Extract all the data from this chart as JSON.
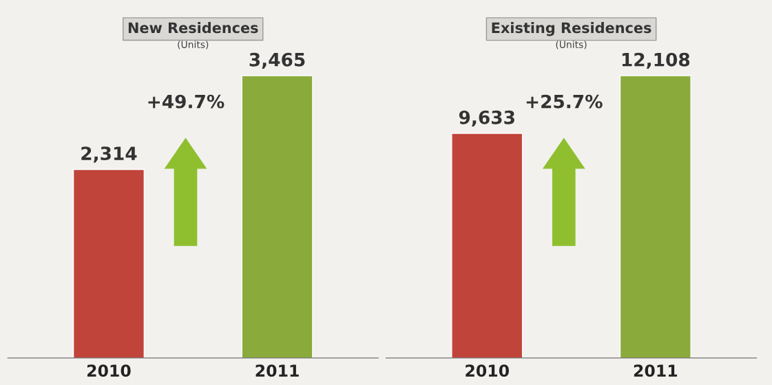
{
  "chart_data": [
    {
      "type": "bar",
      "title": "New Residences",
      "subtitle": "(Units)",
      "categories": [
        "2010",
        "2011"
      ],
      "values": [
        2314,
        3465
      ],
      "value_labels": [
        "2,314",
        "3,465"
      ],
      "colors": [
        "#c0443a",
        "#8aab3c"
      ],
      "tick_labels": "x",
      "grid": false,
      "annotations": [
        "+49.7%"
      ]
    },
    {
      "type": "bar",
      "title": "Existing Residences",
      "subtitle": "(Units)",
      "categories": [
        "2010",
        "2011"
      ],
      "values": [
        9633,
        12108
      ],
      "value_labels": [
        "9,633",
        "12,108"
      ],
      "colors": [
        "#c0443a",
        "#8aab3c"
      ],
      "tick_labels": "x",
      "grid": false,
      "annotations": [
        "+25.7%"
      ]
    }
  ]
}
